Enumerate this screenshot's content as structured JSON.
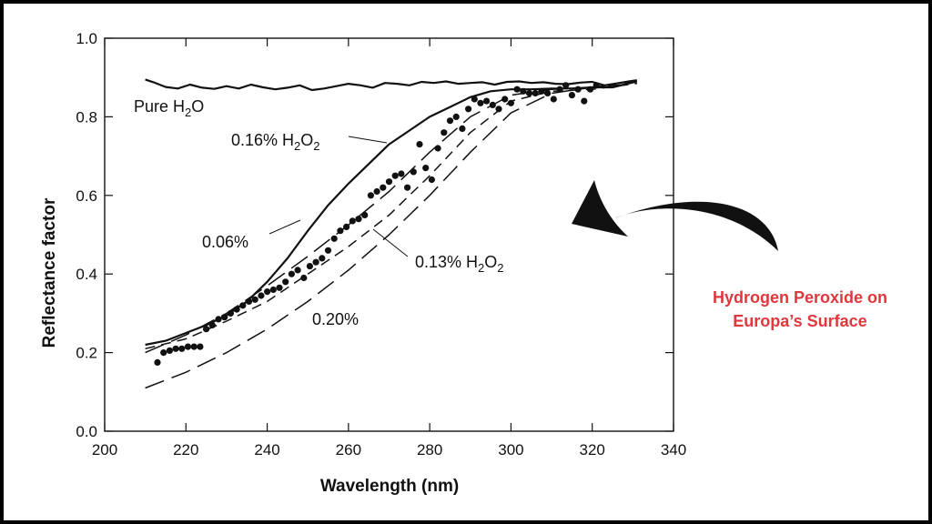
{
  "chart_data": {
    "type": "line",
    "xlabel": "Wavelength (nm)",
    "ylabel": "Reflectance factor",
    "xlim": [
      200,
      340
    ],
    "ylim": [
      0.0,
      1.0
    ],
    "xticks": [
      "200",
      "220",
      "240",
      "260",
      "280",
      "300",
      "320",
      "340"
    ],
    "yticks": [
      "0.0",
      "0.2",
      "0.4",
      "0.6",
      "0.8",
      "1.0"
    ],
    "grid": false,
    "series": [
      {
        "name": "Pure H2O",
        "style": "solid",
        "x": [
          210,
          212,
          215,
          218,
          221,
          224,
          227,
          230,
          233,
          236,
          239,
          242,
          245,
          248,
          251,
          254,
          257,
          260,
          263,
          266,
          269,
          272,
          275,
          278,
          281,
          284,
          287,
          290,
          293,
          296,
          299,
          302,
          305,
          308,
          311,
          314,
          317,
          320,
          323,
          326,
          329,
          331
        ],
        "y": [
          0.895,
          0.888,
          0.876,
          0.872,
          0.882,
          0.874,
          0.871,
          0.878,
          0.872,
          0.882,
          0.875,
          0.87,
          0.874,
          0.88,
          0.868,
          0.872,
          0.878,
          0.884,
          0.88,
          0.874,
          0.886,
          0.884,
          0.88,
          0.889,
          0.886,
          0.89,
          0.884,
          0.886,
          0.888,
          0.882,
          0.889,
          0.89,
          0.886,
          0.888,
          0.884,
          0.883,
          0.887,
          0.889,
          0.88,
          0.885,
          0.89,
          0.893
        ]
      },
      {
        "name": "0.16% H2O2",
        "style": "solid",
        "x": [
          210,
          215,
          220,
          225,
          230,
          235,
          240,
          245,
          250,
          255,
          260,
          265,
          270,
          275,
          280,
          285,
          290,
          295,
          300,
          305,
          310,
          315,
          320,
          325,
          331
        ],
        "y": [
          0.22,
          0.23,
          0.25,
          0.27,
          0.295,
          0.33,
          0.38,
          0.44,
          0.51,
          0.575,
          0.63,
          0.68,
          0.73,
          0.765,
          0.8,
          0.825,
          0.85,
          0.865,
          0.87,
          0.87,
          0.872,
          0.872,
          0.875,
          0.875,
          0.89
        ]
      },
      {
        "name": "0.06%",
        "style": "longdash",
        "x": [
          210,
          220,
          230,
          240,
          250,
          260,
          270,
          280,
          290,
          300,
          310,
          320,
          331
        ],
        "y": [
          0.2,
          0.245,
          0.3,
          0.37,
          0.445,
          0.525,
          0.61,
          0.71,
          0.8,
          0.855,
          0.87,
          0.875,
          0.89
        ]
      },
      {
        "name": "0.13% H2O2",
        "style": "shortdash",
        "x": [
          210,
          220,
          230,
          240,
          250,
          260,
          270,
          280,
          290,
          300,
          310,
          320,
          331
        ],
        "y": [
          0.21,
          0.235,
          0.28,
          0.33,
          0.4,
          0.47,
          0.55,
          0.65,
          0.76,
          0.84,
          0.865,
          0.87,
          0.885
        ]
      },
      {
        "name": "0.20%",
        "style": "longdash",
        "x": [
          210,
          220,
          230,
          240,
          250,
          260,
          270,
          280,
          290,
          300,
          310,
          320,
          331
        ],
        "y": [
          0.11,
          0.15,
          0.2,
          0.26,
          0.33,
          0.41,
          0.5,
          0.6,
          0.71,
          0.81,
          0.86,
          0.875,
          0.885
        ]
      }
    ],
    "points": {
      "x": [
        213,
        214.5,
        216,
        217.5,
        219,
        220.5,
        222,
        223.5,
        225,
        226.5,
        228,
        229.5,
        231,
        232.5,
        234,
        235.5,
        237,
        238.5,
        240,
        241.5,
        243,
        244.5,
        246,
        247.5,
        249,
        250.5,
        252,
        253.5,
        255,
        256.5,
        258,
        259.5,
        261,
        262.5,
        264,
        265.5,
        267,
        268.5,
        270,
        271.5,
        273,
        274.5,
        276,
        277.5,
        279,
        280.5,
        282,
        283.5,
        285,
        286.5,
        288,
        289.5,
        291,
        292.5,
        294,
        295.5,
        297,
        298.5,
        300,
        301.5,
        303,
        304.5,
        306,
        307.5,
        309,
        310.5,
        312,
        313.5,
        315,
        316.5,
        318,
        319.5,
        321
      ],
      "y": [
        0.175,
        0.2,
        0.205,
        0.21,
        0.21,
        0.215,
        0.215,
        0.215,
        0.26,
        0.27,
        0.285,
        0.29,
        0.3,
        0.31,
        0.32,
        0.33,
        0.335,
        0.345,
        0.355,
        0.36,
        0.365,
        0.38,
        0.4,
        0.41,
        0.39,
        0.42,
        0.43,
        0.44,
        0.46,
        0.49,
        0.51,
        0.52,
        0.535,
        0.54,
        0.55,
        0.6,
        0.61,
        0.62,
        0.635,
        0.65,
        0.655,
        0.62,
        0.66,
        0.73,
        0.67,
        0.64,
        0.72,
        0.76,
        0.79,
        0.8,
        0.77,
        0.82,
        0.845,
        0.835,
        0.84,
        0.83,
        0.82,
        0.845,
        0.835,
        0.87,
        0.865,
        0.86,
        0.86,
        0.865,
        0.86,
        0.845,
        0.87,
        0.88,
        0.855,
        0.87,
        0.84,
        0.87,
        0.88
      ]
    }
  },
  "annotations": {
    "pure": {
      "text": "Pure H",
      "sub": "2",
      "tail": "O"
    },
    "s016": {
      "text": "0.16% H",
      "sub1": "2",
      "mid": "O",
      "sub2": "2"
    },
    "s006": {
      "text": "0.06%"
    },
    "s013": {
      "text": "0.13% H",
      "sub1": "2",
      "mid": "O",
      "sub2": "2"
    },
    "s020": {
      "text": "0.20%"
    }
  },
  "caption": {
    "line1": "Hydrogen Peroxide on",
    "line2": "Europa’s Surface",
    "color": "#e0373d"
  }
}
